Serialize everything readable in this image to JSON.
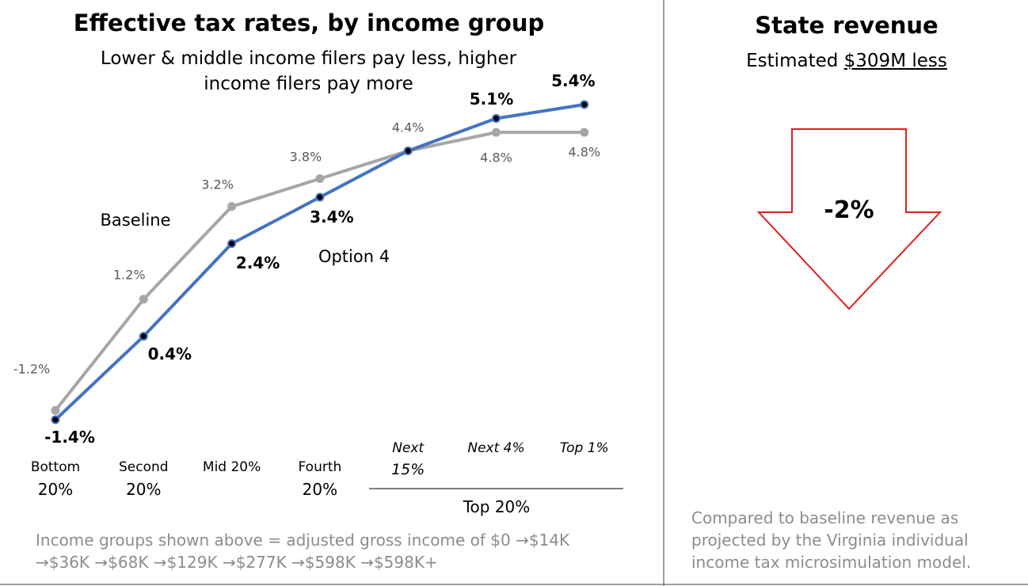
{
  "chart_data": {
    "type": "line",
    "title": "Effective tax rates, by income group",
    "subtitle": "Lower & middle income filers pay less, higher income filers pay more",
    "categories": [
      "Bottom 20%",
      "Second 20%",
      "Mid 20%",
      "Fourth 20%",
      "Next 15%",
      "Next 4%",
      "Top 1%"
    ],
    "category_group": "Top 20%",
    "ylim": [
      -1.4,
      5.4
    ],
    "series": [
      {
        "name": "Baseline",
        "color": "#a6a6a6",
        "values": [
          -1.2,
          1.2,
          3.2,
          3.8,
          4.4,
          4.8,
          4.8
        ],
        "value_labels": [
          "-1.2%",
          "1.2%",
          "3.2%",
          "3.8%",
          "4.4%",
          "4.8%",
          "4.8%"
        ]
      },
      {
        "name": "Option 4",
        "color": "#4472c4",
        "values": [
          -1.4,
          0.4,
          2.4,
          3.4,
          4.4,
          5.1,
          5.4
        ],
        "value_labels": [
          "-1.4%",
          "0.4%",
          "2.4%",
          "3.4%",
          "",
          "5.1%",
          "5.4%"
        ]
      }
    ],
    "note": "Income groups shown above = adjusted gross income of $0 →$14K →$36K →$68K →$129K →$277K →$598K →$598K+"
  },
  "panel": {
    "title": "State revenue",
    "subtitle_prefix": "Estimated",
    "subtitle_amount": "$309M less",
    "change": "-2%",
    "note": "Compared to baseline revenue as projected by the Virginia individual income tax microsimulation model."
  }
}
